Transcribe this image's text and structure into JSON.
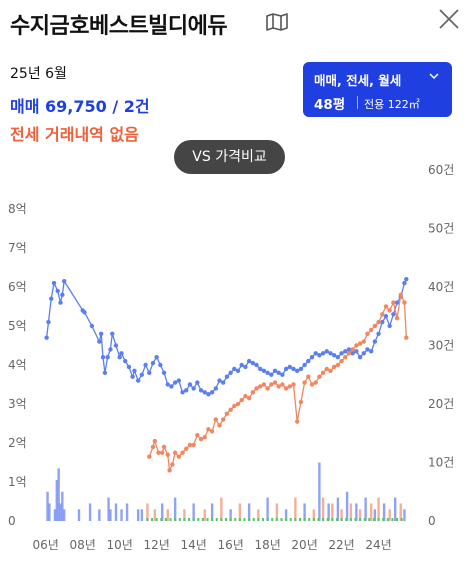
{
  "header": {
    "title": "수지금호베스트빌디에듀",
    "map_icon": "map-icon",
    "close_icon": "close-icon"
  },
  "summary": {
    "period": "25년 6월",
    "sale": "매매 69,750 / 2건",
    "jeonse": "전세 거래내역 없음"
  },
  "filter": {
    "types": "매매, 전세, 월세",
    "size": "48평",
    "area": "전용 122㎡"
  },
  "compare_button": "VS 가격비교",
  "colors": {
    "sale": "#5b7ff0",
    "jeonse": "#f2865f",
    "accent": "#1f3fe0",
    "volume_other": "#5cc36a"
  },
  "chart_data": {
    "type": "line",
    "x_tick_labels": [
      "06년",
      "08년",
      "10년",
      "12년",
      "14년",
      "16년",
      "18년",
      "20년",
      "22년",
      "24년"
    ],
    "x_ticks": [
      2006,
      2008,
      2010,
      2012,
      2014,
      2016,
      2018,
      2020,
      2022,
      2024
    ],
    "xlim": [
      2005.8,
      2025.7
    ],
    "ylim_left": [
      0,
      9
    ],
    "y_left_ticks": [
      0,
      1,
      2,
      3,
      4,
      5,
      6,
      7,
      8
    ],
    "y_left_labels": [
      "0",
      "1억",
      "2억",
      "3억",
      "4억",
      "5억",
      "6억",
      "7억",
      "8억"
    ],
    "ylim_right": [
      0,
      60
    ],
    "y_right_ticks": [
      0,
      10,
      20,
      30,
      40,
      50,
      60
    ],
    "y_right_labels": [
      "0",
      "10건",
      "20건",
      "30건",
      "40건",
      "50건",
      "60건"
    ],
    "grid": false,
    "series": [
      {
        "kind": "price",
        "points": [
          [
            2006.05,
            4.7
          ],
          [
            2006.15,
            5.1
          ],
          [
            2006.3,
            5.7
          ],
          [
            2006.45,
            6.1
          ],
          [
            2006.65,
            5.9
          ],
          [
            2006.8,
            5.6
          ],
          [
            2006.9,
            5.8
          ],
          [
            2007.0,
            6.15
          ],
          [
            2008.0,
            5.4
          ],
          [
            2008.1,
            5.35
          ],
          [
            2008.5,
            5.0
          ],
          [
            2008.9,
            4.6
          ],
          [
            2009.0,
            4.8
          ],
          [
            2009.1,
            4.2
          ],
          [
            2009.2,
            3.8
          ],
          [
            2009.35,
            4.2
          ],
          [
            2009.5,
            4.4
          ],
          [
            2009.6,
            4.8
          ],
          [
            2009.8,
            4.5
          ],
          [
            2010.0,
            4.2
          ],
          [
            2010.1,
            4.3
          ],
          [
            2010.3,
            4.1
          ],
          [
            2010.5,
            3.95
          ],
          [
            2010.7,
            3.7
          ],
          [
            2010.8,
            3.85
          ],
          [
            2011.0,
            3.6
          ],
          [
            2011.2,
            3.75
          ],
          [
            2011.4,
            4.0
          ],
          [
            2011.6,
            3.8
          ],
          [
            2011.8,
            4.05
          ],
          [
            2012.0,
            4.2
          ],
          [
            2012.2,
            4.0
          ],
          [
            2012.4,
            3.8
          ],
          [
            2012.6,
            3.5
          ],
          [
            2012.8,
            3.45
          ],
          [
            2013.0,
            3.55
          ],
          [
            2013.2,
            3.6
          ],
          [
            2013.4,
            3.3
          ],
          [
            2013.6,
            3.35
          ],
          [
            2013.8,
            3.5
          ],
          [
            2014.0,
            3.4
          ],
          [
            2014.2,
            3.55
          ],
          [
            2014.4,
            3.35
          ],
          [
            2014.6,
            3.3
          ],
          [
            2014.8,
            3.25
          ],
          [
            2015.0,
            3.3
          ],
          [
            2015.2,
            3.4
          ],
          [
            2015.4,
            3.6
          ],
          [
            2015.6,
            3.55
          ],
          [
            2015.8,
            3.7
          ],
          [
            2016.0,
            3.8
          ],
          [
            2016.2,
            3.9
          ],
          [
            2016.4,
            3.85
          ],
          [
            2016.6,
            4.0
          ],
          [
            2016.8,
            3.95
          ],
          [
            2017.0,
            4.1
          ],
          [
            2017.2,
            4.05
          ],
          [
            2017.4,
            4.0
          ],
          [
            2017.6,
            3.9
          ],
          [
            2017.8,
            3.85
          ],
          [
            2018.0,
            3.8
          ],
          [
            2018.2,
            3.75
          ],
          [
            2018.4,
            3.85
          ],
          [
            2018.6,
            3.8
          ],
          [
            2018.8,
            3.75
          ],
          [
            2019.0,
            3.9
          ],
          [
            2019.2,
            3.95
          ],
          [
            2019.4,
            3.9
          ],
          [
            2019.6,
            3.85
          ],
          [
            2019.8,
            3.9
          ],
          [
            2020.0,
            4.0
          ],
          [
            2020.2,
            4.1
          ],
          [
            2020.4,
            4.2
          ],
          [
            2020.6,
            4.3
          ],
          [
            2020.8,
            4.25
          ],
          [
            2021.0,
            4.3
          ],
          [
            2021.2,
            4.35
          ],
          [
            2021.4,
            4.3
          ],
          [
            2021.6,
            4.25
          ],
          [
            2021.8,
            4.2
          ],
          [
            2022.0,
            4.3
          ],
          [
            2022.2,
            4.35
          ],
          [
            2022.4,
            4.4
          ],
          [
            2022.6,
            4.3
          ],
          [
            2022.8,
            4.35
          ],
          [
            2023.0,
            4.2
          ],
          [
            2023.2,
            4.3
          ],
          [
            2023.4,
            4.4
          ],
          [
            2023.6,
            4.35
          ],
          [
            2023.8,
            4.6
          ],
          [
            2024.0,
            4.8
          ],
          [
            2024.2,
            5.1
          ],
          [
            2024.4,
            5.25
          ],
          [
            2024.6,
            5.0
          ],
          [
            2024.8,
            5.3
          ],
          [
            2025.0,
            5.6
          ],
          [
            2025.2,
            5.75
          ],
          [
            2025.4,
            6.1
          ],
          [
            2025.5,
            6.2
          ]
        ]
      },
      {
        "kind": "price",
        "points": [
          [
            2011.6,
            1.65
          ],
          [
            2011.8,
            1.9
          ],
          [
            2011.9,
            2.05
          ],
          [
            2012.1,
            1.75
          ],
          [
            2012.3,
            1.75
          ],
          [
            2012.4,
            1.9
          ],
          [
            2012.6,
            1.7
          ],
          [
            2012.7,
            1.3
          ],
          [
            2012.85,
            1.45
          ],
          [
            2013.0,
            1.75
          ],
          [
            2013.2,
            1.65
          ],
          [
            2013.4,
            1.75
          ],
          [
            2013.6,
            1.85
          ],
          [
            2013.8,
            1.95
          ],
          [
            2014.0,
            1.95
          ],
          [
            2014.2,
            2.2
          ],
          [
            2014.4,
            2.1
          ],
          [
            2014.6,
            2.15
          ],
          [
            2014.8,
            2.35
          ],
          [
            2015.0,
            2.3
          ],
          [
            2015.2,
            2.6
          ],
          [
            2015.4,
            2.45
          ],
          [
            2015.6,
            2.6
          ],
          [
            2015.8,
            2.75
          ],
          [
            2016.0,
            2.85
          ],
          [
            2016.2,
            2.95
          ],
          [
            2016.4,
            3.0
          ],
          [
            2016.6,
            3.1
          ],
          [
            2016.8,
            3.2
          ],
          [
            2017.0,
            3.15
          ],
          [
            2017.2,
            3.3
          ],
          [
            2017.4,
            3.4
          ],
          [
            2017.6,
            3.45
          ],
          [
            2017.8,
            3.5
          ],
          [
            2018.0,
            3.4
          ],
          [
            2018.2,
            3.5
          ],
          [
            2018.4,
            3.55
          ],
          [
            2018.6,
            3.45
          ],
          [
            2018.8,
            3.5
          ],
          [
            2019.0,
            3.4
          ],
          [
            2019.2,
            3.45
          ],
          [
            2019.4,
            3.5
          ],
          [
            2019.6,
            2.55
          ],
          [
            2019.8,
            3.05
          ],
          [
            2020.0,
            3.55
          ],
          [
            2020.2,
            3.7
          ],
          [
            2020.4,
            3.5
          ],
          [
            2020.6,
            3.55
          ],
          [
            2020.8,
            3.7
          ],
          [
            2021.0,
            3.8
          ],
          [
            2021.2,
            3.9
          ],
          [
            2021.4,
            3.85
          ],
          [
            2021.6,
            3.95
          ],
          [
            2021.8,
            4.0
          ],
          [
            2022.0,
            4.1
          ],
          [
            2022.2,
            4.2
          ],
          [
            2022.4,
            4.3
          ],
          [
            2022.6,
            4.4
          ],
          [
            2022.8,
            4.5
          ],
          [
            2023.0,
            4.55
          ],
          [
            2023.2,
            4.6
          ],
          [
            2023.4,
            4.8
          ],
          [
            2023.6,
            4.9
          ],
          [
            2023.8,
            5.0
          ],
          [
            2024.0,
            5.1
          ],
          [
            2024.2,
            5.3
          ],
          [
            2024.4,
            5.5
          ],
          [
            2024.6,
            5.4
          ],
          [
            2024.8,
            5.6
          ],
          [
            2025.0,
            5.2
          ],
          [
            2025.2,
            5.8
          ],
          [
            2025.4,
            5.6
          ],
          [
            2025.5,
            4.7
          ]
        ]
      }
    ],
    "volume_bars": [
      [
        2006.1,
        5,
        "sale"
      ],
      [
        2006.2,
        3,
        "sale"
      ],
      [
        2006.5,
        2,
        "sale"
      ],
      [
        2006.6,
        7,
        "sale"
      ],
      [
        2006.7,
        9,
        "sale"
      ],
      [
        2006.8,
        3,
        "sale"
      ],
      [
        2006.9,
        5,
        "sale"
      ],
      [
        2007.0,
        2,
        "sale"
      ],
      [
        2007.8,
        2,
        "sale"
      ],
      [
        2008.4,
        3,
        "sale"
      ],
      [
        2008.9,
        2,
        "sale"
      ],
      [
        2009.4,
        4,
        "sale"
      ],
      [
        2009.5,
        2,
        "sale"
      ],
      [
        2009.8,
        3,
        "sale"
      ],
      [
        2010.1,
        2,
        "sale"
      ],
      [
        2010.4,
        3,
        "sale"
      ],
      [
        2011.0,
        2,
        "sale"
      ],
      [
        2011.2,
        2,
        "sale"
      ],
      [
        2011.5,
        3,
        "jeonse"
      ],
      [
        2011.9,
        2,
        "jeonse"
      ],
      [
        2012.3,
        3,
        "sale"
      ],
      [
        2012.6,
        2,
        "jeonse"
      ],
      [
        2013.0,
        4,
        "sale"
      ],
      [
        2013.5,
        2,
        "jeonse"
      ],
      [
        2014.0,
        3,
        "sale"
      ],
      [
        2014.6,
        2,
        "jeonse"
      ],
      [
        2015.0,
        3,
        "sale"
      ],
      [
        2015.5,
        4,
        "jeonse"
      ],
      [
        2016.0,
        2,
        "sale"
      ],
      [
        2016.5,
        3,
        "jeonse"
      ],
      [
        2017.0,
        3,
        "sale"
      ],
      [
        2017.5,
        2,
        "jeonse"
      ],
      [
        2018.0,
        4,
        "sale"
      ],
      [
        2018.5,
        3,
        "jeonse"
      ],
      [
        2019.0,
        2,
        "sale"
      ],
      [
        2019.5,
        4,
        "jeonse"
      ],
      [
        2020.0,
        3,
        "sale"
      ],
      [
        2020.5,
        2,
        "jeonse"
      ],
      [
        2020.8,
        10,
        "sale"
      ],
      [
        2021.0,
        4,
        "jeonse"
      ],
      [
        2021.3,
        3,
        "sale"
      ],
      [
        2021.5,
        3,
        "jeonse"
      ],
      [
        2021.8,
        4,
        "sale"
      ],
      [
        2022.0,
        2,
        "jeonse"
      ],
      [
        2022.3,
        5,
        "sale"
      ],
      [
        2022.5,
        3,
        "jeonse"
      ],
      [
        2022.8,
        3,
        "sale"
      ],
      [
        2023.0,
        2,
        "jeonse"
      ],
      [
        2023.3,
        4,
        "sale"
      ],
      [
        2023.6,
        3,
        "jeonse"
      ],
      [
        2023.8,
        2,
        "sale"
      ],
      [
        2024.0,
        4,
        "jeonse"
      ],
      [
        2024.3,
        3,
        "sale"
      ],
      [
        2024.6,
        2,
        "jeonse"
      ],
      [
        2024.9,
        4,
        "sale"
      ],
      [
        2025.2,
        3,
        "jeonse"
      ],
      [
        2025.4,
        2,
        "sale"
      ]
    ]
  }
}
